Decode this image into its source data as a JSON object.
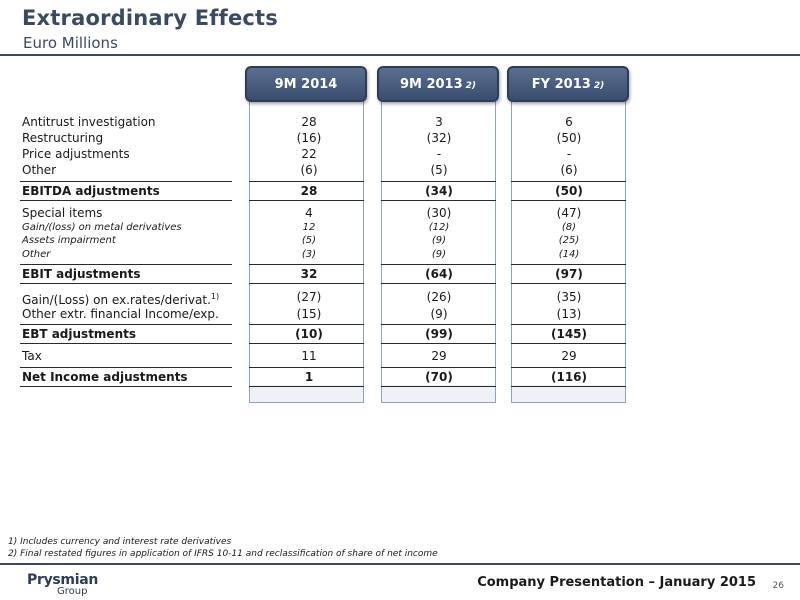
{
  "header": {
    "title": "Extraordinary Effects",
    "subtitle": "Euro Millions"
  },
  "columns": [
    {
      "label": "9M 2014",
      "note": ""
    },
    {
      "label": "9M 2013",
      "note": "2)"
    },
    {
      "label": "FY 2013",
      "note": "2)"
    }
  ],
  "rows": [
    {
      "label": "Antitrust investigation",
      "v1": "28",
      "v2": "3",
      "v3": "6"
    },
    {
      "label": "Restructuring",
      "v1": "(16)",
      "v2": "(32)",
      "v3": "(50)"
    },
    {
      "label": "Price adjustments",
      "v1": "22",
      "v2": "-",
      "v3": "-"
    },
    {
      "label": "Other",
      "v1": "(6)",
      "v2": "(5)",
      "v3": "(6)"
    },
    {
      "label": "EBITDA adjustments",
      "v1": "28",
      "v2": "(34)",
      "v3": "(50)"
    },
    {
      "label": "Special items",
      "v1": "4",
      "v2": "(30)",
      "v3": "(47)"
    },
    {
      "label": "Gain/(loss) on metal derivatives",
      "v1": "12",
      "v2": "(12)",
      "v3": "(8)"
    },
    {
      "label": "Assets impairment",
      "v1": "(5)",
      "v2": "(9)",
      "v3": "(25)"
    },
    {
      "label": "Other",
      "v1": "(3)",
      "v2": "(9)",
      "v3": "(14)"
    },
    {
      "label": "EBIT adjustments",
      "v1": "32",
      "v2": "(64)",
      "v3": "(97)"
    },
    {
      "label": "Gain/(Loss) on ex.rates/derivat.",
      "sup": "1)",
      "v1": "(27)",
      "v2": "(26)",
      "v3": "(35)"
    },
    {
      "label": "Other extr. financial Income/exp.",
      "v1": "(15)",
      "v2": "(9)",
      "v3": "(13)"
    },
    {
      "label": "EBT adjustments",
      "v1": "(10)",
      "v2": "(99)",
      "v3": "(145)"
    },
    {
      "label": "Tax",
      "v1": "11",
      "v2": "29",
      "v3": "29"
    },
    {
      "label": "Net Income adjustments",
      "v1": "1",
      "v2": "(70)",
      "v3": "(116)"
    }
  ],
  "footnotes": [
    "1) Includes currency and interest rate derivatives",
    "2) Final restated figures in application of IFRS 10-11 and reclassification of share of net income"
  ],
  "footer": {
    "logo_name": "Prysmian",
    "logo_group": "Group",
    "presentation": "Company Presentation – January 2015",
    "page_number": "26"
  }
}
